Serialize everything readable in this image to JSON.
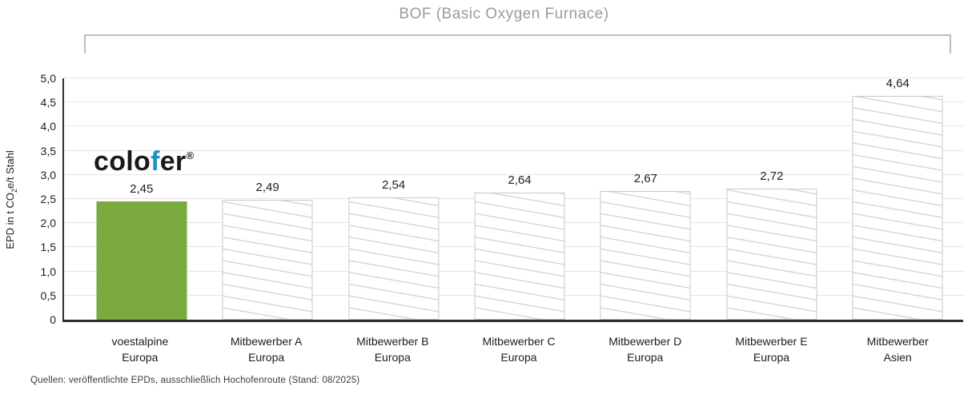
{
  "figure": {
    "title": "BOF (Basic Oxygen Furnace)",
    "footer": "Quellen: veröffentlichte EPDs, ausschließlich Hochofenroute (Stand: 08/2025)"
  },
  "logo": {
    "part1": "colo",
    "accent": "f",
    "part2": "er",
    "registered": "®",
    "accent_color": "#2191C4"
  },
  "chart_data": {
    "type": "bar",
    "title": "BOF (Basic Oxygen Furnace)",
    "ylabel": "EPD in t CO2e/t Stahl",
    "ylabel_parts": {
      "pre": "EPD in t CO",
      "sub": "2",
      "post": "e/t Stahl"
    },
    "ylim": [
      0,
      5
    ],
    "grid": true,
    "legend_position": "none",
    "yticks": [
      {
        "value": 0,
        "label": "0"
      },
      {
        "value": 0.5,
        "label": "0,5"
      },
      {
        "value": 1.0,
        "label": "1,0"
      },
      {
        "value": 1.5,
        "label": "1,5"
      },
      {
        "value": 2.0,
        "label": "2,0"
      },
      {
        "value": 2.5,
        "label": "2,5"
      },
      {
        "value": 3.0,
        "label": "3,0"
      },
      {
        "value": 3.5,
        "label": "3,5"
      },
      {
        "value": 4.0,
        "label": "4,0"
      },
      {
        "value": 4.5,
        "label": "4,5"
      },
      {
        "value": 5.0,
        "label": "5,0"
      }
    ],
    "categories": [
      [
        "voestalpine",
        "Europa"
      ],
      [
        "Mitbewerber A",
        "Europa"
      ],
      [
        "Mitbewerber B",
        "Europa"
      ],
      [
        "Mitbewerber C",
        "Europa"
      ],
      [
        "Mitbewerber D",
        "Europa"
      ],
      [
        "Mitbewerber E",
        "Europa"
      ],
      [
        "Mitbewerber",
        "Asien"
      ]
    ],
    "values": [
      2.45,
      2.49,
      2.54,
      2.64,
      2.67,
      2.72,
      4.64
    ],
    "value_labels": [
      "2,45",
      "2,49",
      "2,54",
      "2,64",
      "2,67",
      "2,72",
      "4,64"
    ],
    "highlight_index": 0,
    "highlight_color": "#7AA93E",
    "hatch_color": "#D8D8D8",
    "bar_border_color": "#C9C9C9"
  }
}
